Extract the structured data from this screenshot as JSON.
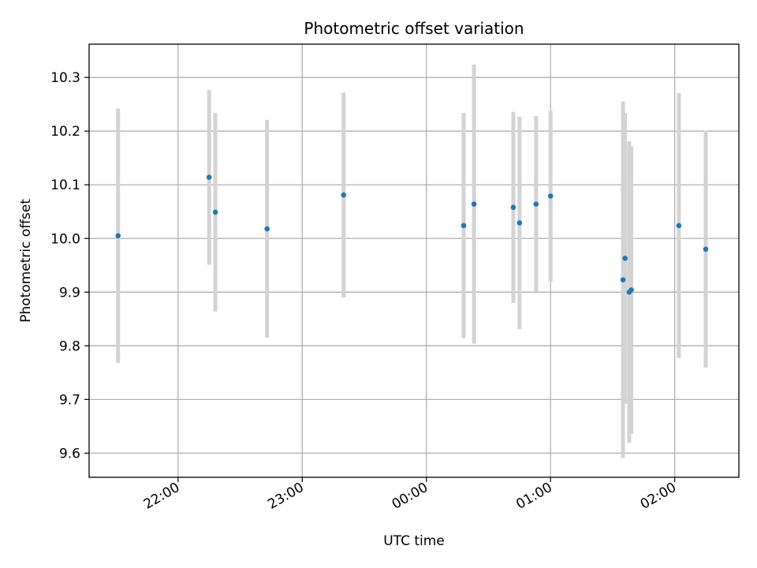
{
  "chart_data": {
    "type": "scatter",
    "title": "Photometric offset variation",
    "xlabel": "UTC time",
    "ylabel": "Photometric offset",
    "grid": true,
    "legend": "none",
    "xlim": [
      "2023-01-01T21:17:00",
      "2023-01-02T02:31:00"
    ],
    "ylim": [
      9.555,
      10.362
    ],
    "xticks": [
      {
        "t": "2023-01-01T22:00",
        "label": "22:00"
      },
      {
        "t": "2023-01-01T23:00",
        "label": "23:00"
      },
      {
        "t": "2023-01-02T00:00",
        "label": "00:00"
      },
      {
        "t": "2023-01-02T01:00",
        "label": "01:00"
      },
      {
        "t": "2023-01-02T02:00",
        "label": "02:00"
      }
    ],
    "yticks": [
      9.6,
      9.7,
      9.8,
      9.9,
      10.0,
      10.1,
      10.2,
      10.3
    ],
    "ytick_labels": [
      "9.6",
      "9.7",
      "9.8",
      "9.9",
      "10.0",
      "10.1",
      "10.2",
      "10.3"
    ],
    "points": [
      {
        "t": "2023-01-01T21:31",
        "y": 10.005,
        "err": 0.237
      },
      {
        "t": "2023-01-01T22:15",
        "y": 10.114,
        "err": 0.163
      },
      {
        "t": "2023-01-01T22:18",
        "y": 10.049,
        "err": 0.185
      },
      {
        "t": "2023-01-01T22:43",
        "y": 10.018,
        "err": 0.203
      },
      {
        "t": "2023-01-01T23:20",
        "y": 10.081,
        "err": 0.191
      },
      {
        "t": "2023-01-02T00:18",
        "y": 10.024,
        "err": 0.21
      },
      {
        "t": "2023-01-02T00:23",
        "y": 10.064,
        "err": 0.26
      },
      {
        "t": "2023-01-02T00:42",
        "y": 10.058,
        "err": 0.178
      },
      {
        "t": "2023-01-02T00:45",
        "y": 10.029,
        "err": 0.198
      },
      {
        "t": "2023-01-02T00:53",
        "y": 10.064,
        "err": 0.164
      },
      {
        "t": "2023-01-02T01:00",
        "y": 10.079,
        "err": 0.159
      },
      {
        "t": "2023-01-02T01:35",
        "y": 9.923,
        "err": 0.332
      },
      {
        "t": "2023-01-02T01:36",
        "y": 9.963,
        "err": 0.271
      },
      {
        "t": "2023-01-02T01:38",
        "y": 9.9,
        "err": 0.281
      },
      {
        "t": "2023-01-02T01:39",
        "y": 9.904,
        "err": 0.268
      },
      {
        "t": "2023-01-02T02:02",
        "y": 10.024,
        "err": 0.247
      },
      {
        "t": "2023-01-02T02:15",
        "y": 9.98,
        "err": 0.221
      }
    ],
    "colors": {
      "point": "#1f77b4",
      "errorbar": "#d3d3d3",
      "grid": "#b0b0b0",
      "axes": "#000000"
    }
  }
}
